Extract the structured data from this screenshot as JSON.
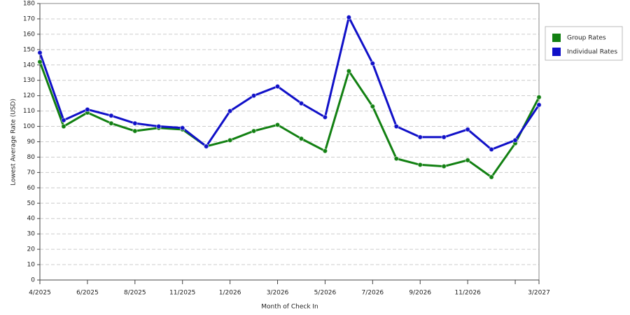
{
  "chart_data": {
    "type": "line",
    "x_label": "Month of Check In",
    "y_label": "Lowest Average Rate (USD)",
    "categories": [
      "4/2025",
      null,
      "6/2025",
      null,
      "8/2025",
      null,
      "11/2025",
      null,
      "1/2026",
      null,
      "3/2026",
      null,
      "5/2026",
      null,
      "7/2026",
      null,
      "9/2026",
      null,
      "11/2026",
      null,
      null,
      "3/2027"
    ],
    "series": [
      {
        "name": "Group Rates",
        "color": "#128012",
        "values": [
          142,
          100,
          109,
          102,
          97,
          99,
          98,
          87,
          91,
          97,
          101,
          92,
          84,
          136,
          113,
          79,
          75,
          74,
          78,
          67,
          89,
          119
        ]
      },
      {
        "name": "Individual Rates",
        "color": "#1010c8",
        "values": [
          148,
          104,
          111,
          107,
          102,
          100,
          99,
          87,
          110,
          120,
          126,
          115,
          106,
          171,
          141,
          100,
          93,
          93,
          98,
          85,
          91,
          114
        ]
      }
    ],
    "ylim": [
      0,
      180
    ],
    "yticks": [
      0,
      10,
      20,
      30,
      40,
      50,
      60,
      70,
      80,
      90,
      100,
      110,
      120,
      130,
      140,
      150,
      160,
      170,
      180
    ],
    "grid": true,
    "legend": "right"
  }
}
